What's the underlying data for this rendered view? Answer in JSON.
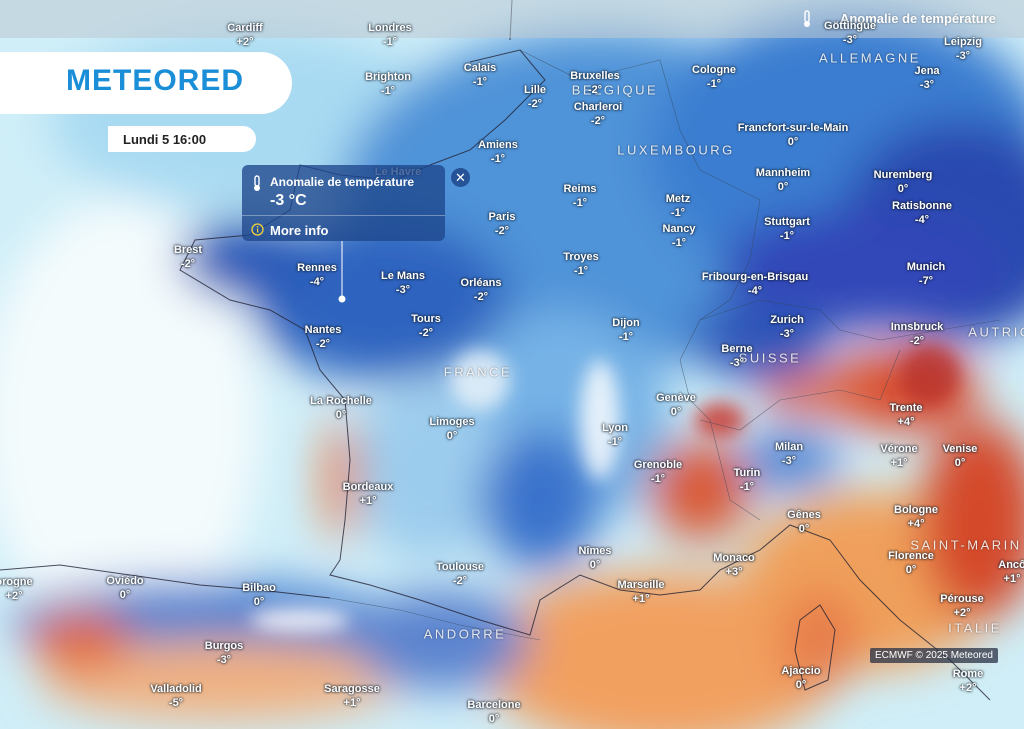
{
  "header": {
    "title": "Anomalie de température"
  },
  "logo": {
    "text": "METEORED"
  },
  "date": "Lundi 5 16:00",
  "popup": {
    "title": "Anomalie de température",
    "value": "-3 °C",
    "link": "More info"
  },
  "credit": "ECMWF © 2025 Meteored",
  "countries": [
    "ALLEMAGNE",
    "BELGIQUE",
    "LUXEMBOURG",
    "FRANCE",
    "SUISSE",
    "AUTRIC",
    "ITALIE",
    "ANDORRE",
    "SAINT-MARIN"
  ],
  "cities": [
    {
      "name": "Cardiff",
      "value": "+2°"
    },
    {
      "name": "Londres",
      "value": "-1°"
    },
    {
      "name": "Brighton",
      "value": "-1°"
    },
    {
      "name": "Calais",
      "value": "-1°"
    },
    {
      "name": "Bruxelles",
      "value": "-2°"
    },
    {
      "name": "Lille",
      "value": "-2°"
    },
    {
      "name": "Charleroi",
      "value": "-2°"
    },
    {
      "name": "Cologne",
      "value": "-1°"
    },
    {
      "name": "Göttingue",
      "value": "-3°"
    },
    {
      "name": "Leipzig",
      "value": "-3°"
    },
    {
      "name": "Jena",
      "value": "-3°"
    },
    {
      "name": "Amiens",
      "value": "-1°"
    },
    {
      "name": "Francfort-sur-le-Main",
      "value": "0°"
    },
    {
      "name": "Reims",
      "value": "-1°"
    },
    {
      "name": "Mannheim",
      "value": "0°"
    },
    {
      "name": "Nuremberg",
      "value": "0°"
    },
    {
      "name": "Metz",
      "value": "-1°"
    },
    {
      "name": "Paris",
      "value": "-2°"
    },
    {
      "name": "Stuttgart",
      "value": "-1°"
    },
    {
      "name": "Ratisbonne",
      "value": "-4°"
    },
    {
      "name": "Nancy",
      "value": "-1°"
    },
    {
      "name": "Brest",
      "value": "-2°"
    },
    {
      "name": "Rennes",
      "value": "-4°"
    },
    {
      "name": "Le Mans",
      "value": "-3°"
    },
    {
      "name": "Troyes",
      "value": "-1°"
    },
    {
      "name": "Orléans",
      "value": "-2°"
    },
    {
      "name": "Fribourg-en-Brisgau",
      "value": "-4°"
    },
    {
      "name": "Munich",
      "value": "-7°"
    },
    {
      "name": "Tours",
      "value": "-2°"
    },
    {
      "name": "Dijon",
      "value": "-1°"
    },
    {
      "name": "Zurich",
      "value": "-3°"
    },
    {
      "name": "Innsbruck",
      "value": "-2°"
    },
    {
      "name": "Nantes",
      "value": "-2°"
    },
    {
      "name": "Berne",
      "value": "-3°"
    },
    {
      "name": "La Rochelle",
      "value": "0°"
    },
    {
      "name": "Genève",
      "value": "0°"
    },
    {
      "name": "Trente",
      "value": "+4°"
    },
    {
      "name": "Limoges",
      "value": "0°"
    },
    {
      "name": "Lyon",
      "value": "-1°"
    },
    {
      "name": "Milan",
      "value": "-3°"
    },
    {
      "name": "Vérone",
      "value": "+1°"
    },
    {
      "name": "Venise",
      "value": "0°"
    },
    {
      "name": "Grenoble",
      "value": "-1°"
    },
    {
      "name": "Turin",
      "value": "-1°"
    },
    {
      "name": "Bordeaux",
      "value": "+1°"
    },
    {
      "name": "Bologne",
      "value": "+4°"
    },
    {
      "name": "Gênes",
      "value": "0°"
    },
    {
      "name": "Florence",
      "value": "0°"
    },
    {
      "name": "Nîmes",
      "value": "0°"
    },
    {
      "name": "Monaco",
      "value": "+3°"
    },
    {
      "name": "Toulouse",
      "value": "-2°"
    },
    {
      "name": "Marseille",
      "value": "+1°"
    },
    {
      "name": "Oviédo",
      "value": "0°"
    },
    {
      "name": "Bilbao",
      "value": "0°"
    },
    {
      "name": "orogne",
      "value": "+2°"
    },
    {
      "name": "Pérouse",
      "value": "+2°"
    },
    {
      "name": "Burgos",
      "value": "-3°"
    },
    {
      "name": "Ajaccio",
      "value": "0°"
    },
    {
      "name": "Rome",
      "value": "+2°"
    },
    {
      "name": "Valladolid",
      "value": "-5°"
    },
    {
      "name": "Saragosse",
      "value": "+1°"
    },
    {
      "name": "Barcelone",
      "value": "0°"
    },
    {
      "name": "Le Havre",
      "value": null
    },
    {
      "name": "Ancô",
      "value": "+1°"
    }
  ]
}
